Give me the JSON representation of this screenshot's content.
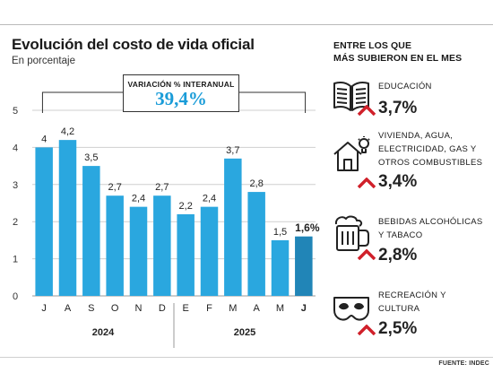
{
  "header": {
    "title": "Evolución del costo de vida oficial",
    "subtitle": "En porcentaje"
  },
  "highlight": {
    "label": "VARIACIÓN % INTERANUAL",
    "value": "39,4%"
  },
  "chart_data": {
    "type": "bar",
    "categories": [
      "J",
      "A",
      "S",
      "O",
      "N",
      "D",
      "E",
      "F",
      "M",
      "A",
      "M",
      "J"
    ],
    "values": [
      4,
      4.2,
      3.5,
      2.7,
      2.4,
      2.7,
      2.2,
      2.4,
      3.7,
      2.8,
      1.5,
      1.6
    ],
    "value_labels": [
      "4",
      "4,2",
      "3,5",
      "2,7",
      "2,4",
      "2,7",
      "2,2",
      "2,4",
      "3,7",
      "2,8",
      "1,5",
      "1,6%"
    ],
    "highlight_index": 11,
    "ylim": [
      0,
      5
    ],
    "yticks": [
      "0",
      "1",
      "2",
      "3",
      "4",
      "5"
    ],
    "year_groups": [
      {
        "label": "2024",
        "from": 0,
        "to": 5
      },
      {
        "label": "2025",
        "from": 6,
        "to": 11
      }
    ],
    "colors": {
      "bar": "#2aa7df",
      "highlight": "#1a6a96",
      "grid": "#cfcfcf"
    },
    "grid": true
  },
  "sidebar": {
    "header_line1": "ENTRE LOS QUE",
    "header_line2": "MÁS SUBIERON EN EL MES",
    "items": [
      {
        "icon": "book-icon",
        "label_lines": [
          "EDUCACIÓN"
        ],
        "value": "3,7%"
      },
      {
        "icon": "house-bulb-icon",
        "label_lines": [
          "VIVIENDA, AGUA,",
          "ELECTRICIDAD, GAS Y",
          "OTROS COMBUSTIBLES"
        ],
        "value": "3,4%"
      },
      {
        "icon": "beer-mug-icon",
        "label_lines": [
          "BEBIDAS ALCOHÓLICAS",
          "Y TABACO"
        ],
        "value": "2,8%"
      },
      {
        "icon": "theater-mask-icon",
        "label_lines": [
          "RECREACIÓN Y",
          "CULTURA"
        ],
        "value": "2,5%"
      }
    ],
    "arrow_color": "#d0202a"
  },
  "source": "FUENTE: INDEC"
}
